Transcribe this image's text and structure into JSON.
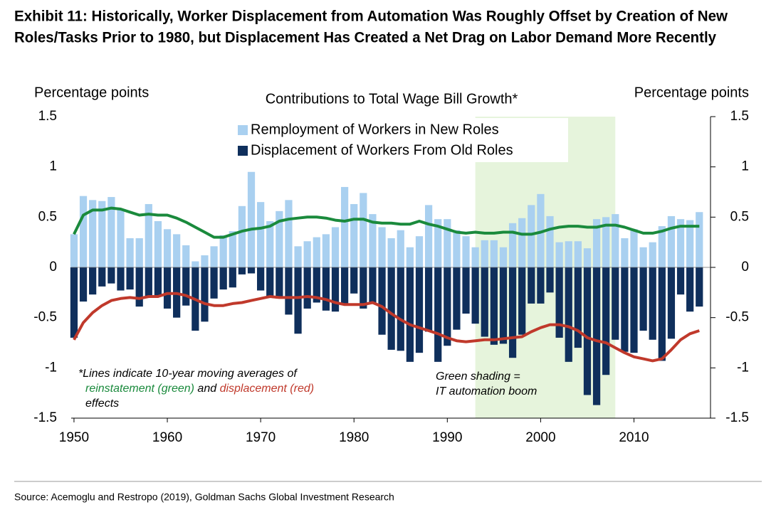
{
  "chart_data": {
    "type": "bar",
    "title_lines": [
      "Exhibit 11: Historically, Worker Displacement from Automation Was Roughly Offset by Creation of New",
      "Roles/Tasks Prior to 1980, but Displacement Has Created a Net Drag on Labor Demand More Recently"
    ],
    "subtitle": "Contributions to Total Wage Bill Growth*",
    "ylabel": "Percentage points",
    "y2label": "Percentage points",
    "source": "Source: Acemoglu and Restropo (2019), Goldman Sachs Global Investment Research",
    "x": [
      1950,
      1951,
      1952,
      1953,
      1954,
      1955,
      1956,
      1957,
      1958,
      1959,
      1960,
      1961,
      1962,
      1963,
      1964,
      1965,
      1966,
      1967,
      1968,
      1969,
      1970,
      1971,
      1972,
      1973,
      1974,
      1975,
      1976,
      1977,
      1978,
      1979,
      1980,
      1981,
      1982,
      1983,
      1984,
      1985,
      1986,
      1987,
      1988,
      1989,
      1990,
      1991,
      1992,
      1993,
      1994,
      1995,
      1996,
      1997,
      1998,
      1999,
      2000,
      2001,
      2002,
      2003,
      2004,
      2005,
      2006,
      2007,
      2008,
      2009,
      2010,
      2011,
      2012,
      2013,
      2014,
      2015,
      2016,
      2017
    ],
    "series": [
      {
        "name": "Remployment of Workers in New Roles",
        "color": "#a9d0f0",
        "kind": "bar",
        "values": [
          0.33,
          0.71,
          0.67,
          0.66,
          0.7,
          0.58,
          0.29,
          0.29,
          0.63,
          0.46,
          0.38,
          0.33,
          0.22,
          0.06,
          0.12,
          0.21,
          0.32,
          0.36,
          0.61,
          0.95,
          0.65,
          0.46,
          0.56,
          0.67,
          0.21,
          0.26,
          0.3,
          0.33,
          0.4,
          0.8,
          0.63,
          0.74,
          0.53,
          0.4,
          0.29,
          0.37,
          0.2,
          0.31,
          0.62,
          0.48,
          0.48,
          0.37,
          0.31,
          0.2,
          0.27,
          0.27,
          0.2,
          0.44,
          0.49,
          0.62,
          0.73,
          0.51,
          0.25,
          0.26,
          0.26,
          0.19,
          0.48,
          0.5,
          0.53,
          0.29,
          0.38,
          0.2,
          0.25,
          0.41,
          0.51,
          0.48,
          0.47,
          0.55
        ]
      },
      {
        "name": "Displacement of Workers From Old Roles",
        "color": "#0f2f5c",
        "kind": "bar",
        "values": [
          -0.7,
          -0.34,
          -0.27,
          -0.19,
          -0.16,
          -0.23,
          -0.22,
          -0.39,
          -0.3,
          -0.29,
          -0.41,
          -0.5,
          -0.38,
          -0.63,
          -0.54,
          -0.31,
          -0.22,
          -0.2,
          -0.07,
          -0.06,
          -0.23,
          -0.3,
          -0.31,
          -0.47,
          -0.66,
          -0.41,
          -0.35,
          -0.43,
          -0.44,
          -0.37,
          -0.26,
          -0.41,
          -0.35,
          -0.67,
          -0.82,
          -0.83,
          -0.94,
          -0.85,
          -0.64,
          -0.94,
          -0.78,
          -0.62,
          -0.46,
          -0.56,
          -0.69,
          -0.77,
          -0.76,
          -0.9,
          -0.67,
          -0.36,
          -0.36,
          -0.25,
          -0.7,
          -0.94,
          -0.8,
          -1.27,
          -1.37,
          -1.07,
          -0.72,
          -0.84,
          -0.85,
          -0.63,
          -0.72,
          -0.93,
          -0.71,
          -0.27,
          -0.44,
          -0.39
        ]
      },
      {
        "color": "#1a8a3c",
        "kind": "line",
        "values": [
          0.33,
          0.52,
          0.57,
          0.57,
          0.59,
          0.58,
          0.55,
          0.52,
          0.53,
          0.52,
          0.52,
          0.49,
          0.45,
          0.4,
          0.35,
          0.3,
          0.3,
          0.33,
          0.36,
          0.38,
          0.39,
          0.41,
          0.46,
          0.48,
          0.49,
          0.5,
          0.5,
          0.49,
          0.47,
          0.46,
          0.48,
          0.48,
          0.45,
          0.44,
          0.44,
          0.43,
          0.43,
          0.46,
          0.43,
          0.41,
          0.38,
          0.35,
          0.34,
          0.35,
          0.34,
          0.34,
          0.35,
          0.35,
          0.33,
          0.33,
          0.35,
          0.38,
          0.4,
          0.41,
          0.41,
          0.4,
          0.4,
          0.42,
          0.42,
          0.4,
          0.37,
          0.34,
          0.34,
          0.36,
          0.39,
          0.41,
          0.41,
          0.41
        ]
      },
      {
        "color": "#c0392b",
        "kind": "line",
        "values": [
          -0.72,
          -0.55,
          -0.45,
          -0.38,
          -0.33,
          -0.31,
          -0.3,
          -0.31,
          -0.29,
          -0.29,
          -0.26,
          -0.26,
          -0.28,
          -0.32,
          -0.36,
          -0.38,
          -0.38,
          -0.36,
          -0.35,
          -0.33,
          -0.31,
          -0.29,
          -0.3,
          -0.3,
          -0.3,
          -0.29,
          -0.3,
          -0.32,
          -0.35,
          -0.37,
          -0.37,
          -0.37,
          -0.35,
          -0.39,
          -0.46,
          -0.52,
          -0.57,
          -0.6,
          -0.63,
          -0.66,
          -0.7,
          -0.73,
          -0.74,
          -0.73,
          -0.72,
          -0.72,
          -0.71,
          -0.7,
          -0.69,
          -0.64,
          -0.6,
          -0.57,
          -0.57,
          -0.59,
          -0.63,
          -0.7,
          -0.73,
          -0.75,
          -0.8,
          -0.85,
          -0.89,
          -0.91,
          -0.93,
          -0.91,
          -0.82,
          -0.72,
          -0.66,
          -0.63
        ]
      }
    ],
    "xlim": [
      1949.7,
      2018.2
    ],
    "xticks": [
      1950,
      1960,
      1970,
      1980,
      1990,
      2000,
      2010
    ],
    "ylim": [
      -1.5,
      1.5
    ],
    "yticks": [
      1.5,
      1,
      0.5,
      0,
      -0.5,
      -1,
      -1.5
    ],
    "y2lim": [
      -1.5,
      1.5
    ],
    "y2ticks": [
      1.5,
      1,
      0.5,
      0,
      -0.5,
      -1,
      -1.5
    ],
    "shading": {
      "from": 1993,
      "to": 2008,
      "color": "#e6f4dc",
      "annotation": [
        "Green shading =",
        "IT automation boom"
      ],
      "annotation_color": "#1a8a3c"
    },
    "footnote": [
      [
        {
          "text": "*Lines indicate 10-year moving averages of",
          "color": "#000000"
        }
      ],
      [
        {
          "text": "reinstatement (green)",
          "color": "#1a8a3c"
        },
        {
          "text": " and ",
          "color": "#000000"
        },
        {
          "text": "displacement (red)",
          "color": "#c0392b"
        }
      ],
      [
        {
          "text": "effects",
          "color": "#000000"
        }
      ]
    ]
  }
}
